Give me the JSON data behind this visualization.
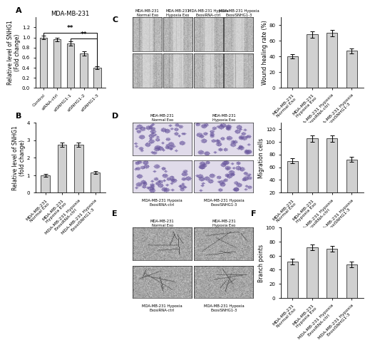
{
  "panel_A": {
    "title": "MDA-MB-231",
    "categories": [
      "Control",
      "siRNA-ctrl",
      "siSNHG1-1",
      "siSNHG1-2",
      "siSNHG1-3"
    ],
    "values": [
      1.0,
      0.96,
      0.88,
      0.68,
      0.4
    ],
    "errors": [
      0.04,
      0.04,
      0.04,
      0.04,
      0.03
    ],
    "ylabel": "Relative level of SNHG1\n(Fold change)",
    "ylim": [
      0,
      1.4
    ],
    "yticks": [
      0.0,
      0.2,
      0.4,
      0.6,
      0.8,
      1.0,
      1.2
    ],
    "bar_color": "#d0d0d0",
    "bar_edgecolor": "#333333"
  },
  "panel_B": {
    "categories": [
      "MDA-MB-231\nNormal Exo",
      "MDA-MB-231\nHypoxia Exo",
      "MDA-MB-231 Hypoxia\nExosiRNA-ctrl",
      "MDA-MB-231 Hypoxia\nExosiSNHG1-3"
    ],
    "values": [
      1.0,
      2.75,
      2.75,
      1.15
    ],
    "errors": [
      0.08,
      0.12,
      0.12,
      0.1
    ],
    "ylabel": "Relative level of SNHG1\n(fold change)",
    "ylim": [
      0,
      4
    ],
    "yticks": [
      0,
      1,
      2,
      3,
      4
    ],
    "bar_color": "#d0d0d0",
    "bar_edgecolor": "#333333"
  },
  "panel_C_chart": {
    "categories": [
      "MDA-MB-231\nNormal Exo",
      "MDA-MB-231\nHypoxia Exo",
      "MDA-MB-231 Hypoxia\nExosiRNA-ctrl",
      "MDA-MB-231 Hypoxia\nExosiSNHG1-3"
    ],
    "values": [
      40,
      68,
      70,
      47
    ],
    "errors": [
      3,
      4,
      4,
      3
    ],
    "ylabel": "Wound healing rate (%)",
    "ylim": [
      0,
      90
    ],
    "yticks": [
      0,
      20,
      40,
      60,
      80
    ],
    "bar_color": "#d0d0d0",
    "bar_edgecolor": "#333333"
  },
  "panel_D_chart": {
    "categories": [
      "MDA-MB-231\nNormal Exo",
      "MDA-MB-231\nHypoxia Exo",
      "MDA-MB-231 Hypoxia\nExosiRNA-ctrl",
      "MDA-MB-231 Hypoxia\nExosiSNHG1-3"
    ],
    "values": [
      70,
      105,
      105,
      72
    ],
    "errors": [
      4,
      5,
      5,
      4
    ],
    "ylabel": "Migration cells",
    "ylim": [
      20,
      130
    ],
    "yticks": [
      20,
      40,
      60,
      80,
      100,
      120
    ],
    "bar_color": "#d0d0d0",
    "bar_edgecolor": "#333333"
  },
  "panel_F_chart": {
    "categories": [
      "MDA-MB-231\nNormal Exo",
      "MDA-MB-231\nHypoxia Exo",
      "MDA-MB-231 Hypoxia\nExosiRNA-ctrl",
      "MDA-MB-231 Hypoxia\nExosiSNHG1-3"
    ],
    "values": [
      52,
      72,
      70,
      48
    ],
    "errors": [
      4,
      4,
      4,
      4
    ],
    "ylabel": "Branch points",
    "ylim": [
      0,
      100
    ],
    "yticks": [
      0,
      20,
      40,
      60,
      80,
      100
    ],
    "bar_color": "#d0d0d0",
    "bar_edgecolor": "#333333"
  },
  "label_fontsize": 5.5,
  "tick_fontsize": 5.0,
  "title_fontsize": 6.0,
  "panel_label_fontsize": 8,
  "sig_fontsize": 6.5,
  "bar_width": 0.55,
  "background_color": "#ffffff"
}
